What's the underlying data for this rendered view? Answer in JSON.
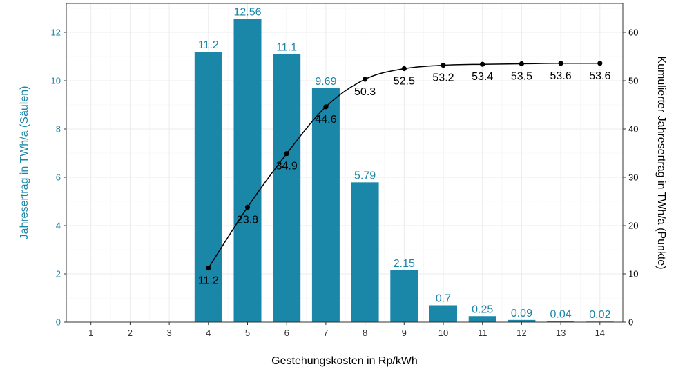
{
  "chart_data": {
    "type": "bar",
    "categories": [
      "1",
      "2",
      "3",
      "4",
      "5",
      "6",
      "7",
      "8",
      "9",
      "10",
      "11",
      "12",
      "13",
      "14"
    ],
    "series": [
      {
        "type": "bar",
        "axis": "left",
        "values": [
          null,
          null,
          null,
          11.2,
          12.56,
          11.1,
          9.69,
          5.79,
          2.15,
          0.7,
          0.25,
          0.09,
          0.04,
          0.02
        ],
        "labels": [
          "",
          "",
          "",
          "11.2",
          "12.56",
          "11.1",
          "9.69",
          "5.79",
          "2.15",
          "0.7",
          "0.25",
          "0.09",
          "0.04",
          "0.02"
        ],
        "color": "#1a86a8"
      },
      {
        "type": "line",
        "axis": "right",
        "values": [
          null,
          null,
          null,
          11.2,
          23.8,
          34.9,
          44.6,
          50.3,
          52.5,
          53.2,
          53.4,
          53.5,
          53.6,
          53.6
        ],
        "labels": [
          "",
          "",
          "",
          "11.2",
          "23.8",
          "34.9",
          "44.6",
          "50.3",
          "52.5",
          "53.2",
          "53.4",
          "53.5",
          "53.6",
          "53.6"
        ],
        "color": "#000000"
      }
    ],
    "xlabel": "Gestehungskosten in Rp/kWh",
    "ylabel_left": "Jahresertrag in TWh/a (Säulen)",
    "ylabel_right": "Kumulierter Jahresertrag in TWh/a (Punkte)",
    "ylim_left": [
      0,
      13.2
    ],
    "ylim_right": [
      0,
      66
    ],
    "yticks_left": [
      "0",
      "2",
      "4",
      "6",
      "8",
      "10",
      "12"
    ],
    "yticks_right": [
      "0",
      "10",
      "20",
      "30",
      "40",
      "50",
      "60"
    ],
    "grid": true,
    "colors": {
      "left_axis": "#1a86a8",
      "right_axis": "#000000",
      "grid": "#ebebeb",
      "panel_border": "#333333"
    }
  }
}
